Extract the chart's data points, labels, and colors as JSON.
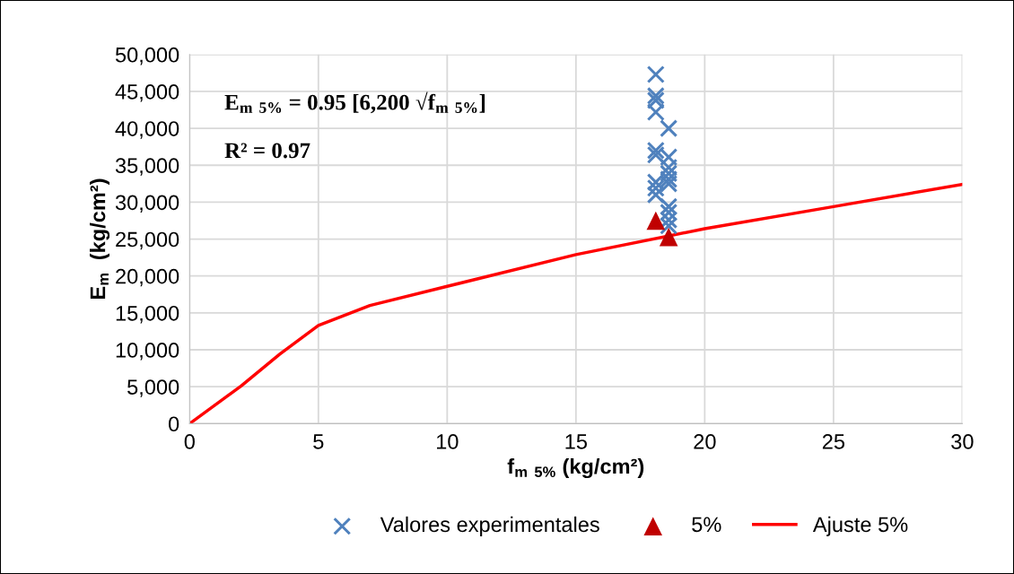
{
  "chart_data": {
    "type": "scatter",
    "xlabel": "f$_{m 5%}$ (kg/cm²)",
    "ylabel": "E$_{m}$  (kg/cm²)",
    "annotations": [
      "E$_{m 5%}$ = 0.95 [6,200 √f$_{m 5%}$]",
      "R² = 0.97"
    ],
    "xlim": [
      0,
      30
    ],
    "xticks": [
      0,
      5,
      10,
      15,
      20,
      25,
      30
    ],
    "ylim": [
      0,
      50000
    ],
    "yticks": [
      0,
      {
        "value": 5000,
        "label": "5,000"
      },
      {
        "value": 10000,
        "label": "10,000"
      },
      {
        "value": 15000,
        "label": "15,000"
      },
      {
        "value": 20000,
        "label": "20,000"
      },
      {
        "value": 25000,
        "label": "25,000"
      },
      {
        "value": 30000,
        "label": "30,000"
      },
      {
        "value": 35000,
        "label": "35,000"
      },
      {
        "value": 40000,
        "label": "40,000"
      },
      {
        "value": 45000,
        "label": "45,000"
      },
      {
        "value": 50000,
        "label": "50,000"
      }
    ],
    "grid": true,
    "legend": "bottom",
    "series": [
      {
        "name": "Valores experimentales",
        "type": "scatter",
        "marker": "cross",
        "color": "#4f81bd",
        "x": [
          18.1,
          18.1,
          18.1,
          18.1,
          18.1,
          18.1,
          18.1,
          18.1,
          18.1,
          18.6,
          18.6,
          18.6,
          18.6,
          18.6,
          18.6,
          18.6,
          18.6,
          18.6,
          18.6
        ],
        "values": [
          47300,
          44400,
          43800,
          42200,
          37000,
          36400,
          32700,
          31900,
          31000,
          40000,
          36100,
          34700,
          33900,
          33100,
          32500,
          29400,
          28600,
          27600,
          26800
        ]
      },
      {
        "name": "5%",
        "type": "scatter",
        "marker": "triangle",
        "color": "#c00000",
        "x": [
          18.1,
          18.6
        ],
        "values": [
          27500,
          25300
        ]
      },
      {
        "name": "Ajuste 5%",
        "type": "line",
        "marker": "none",
        "color": "#ff0000",
        "x": [
          0,
          2,
          3.5,
          5,
          7,
          10,
          15,
          20,
          25,
          30
        ],
        "values": [
          0,
          5100,
          9400,
          13300,
          16000,
          18600,
          22900,
          26400,
          29400,
          32400
        ]
      }
    ]
  }
}
